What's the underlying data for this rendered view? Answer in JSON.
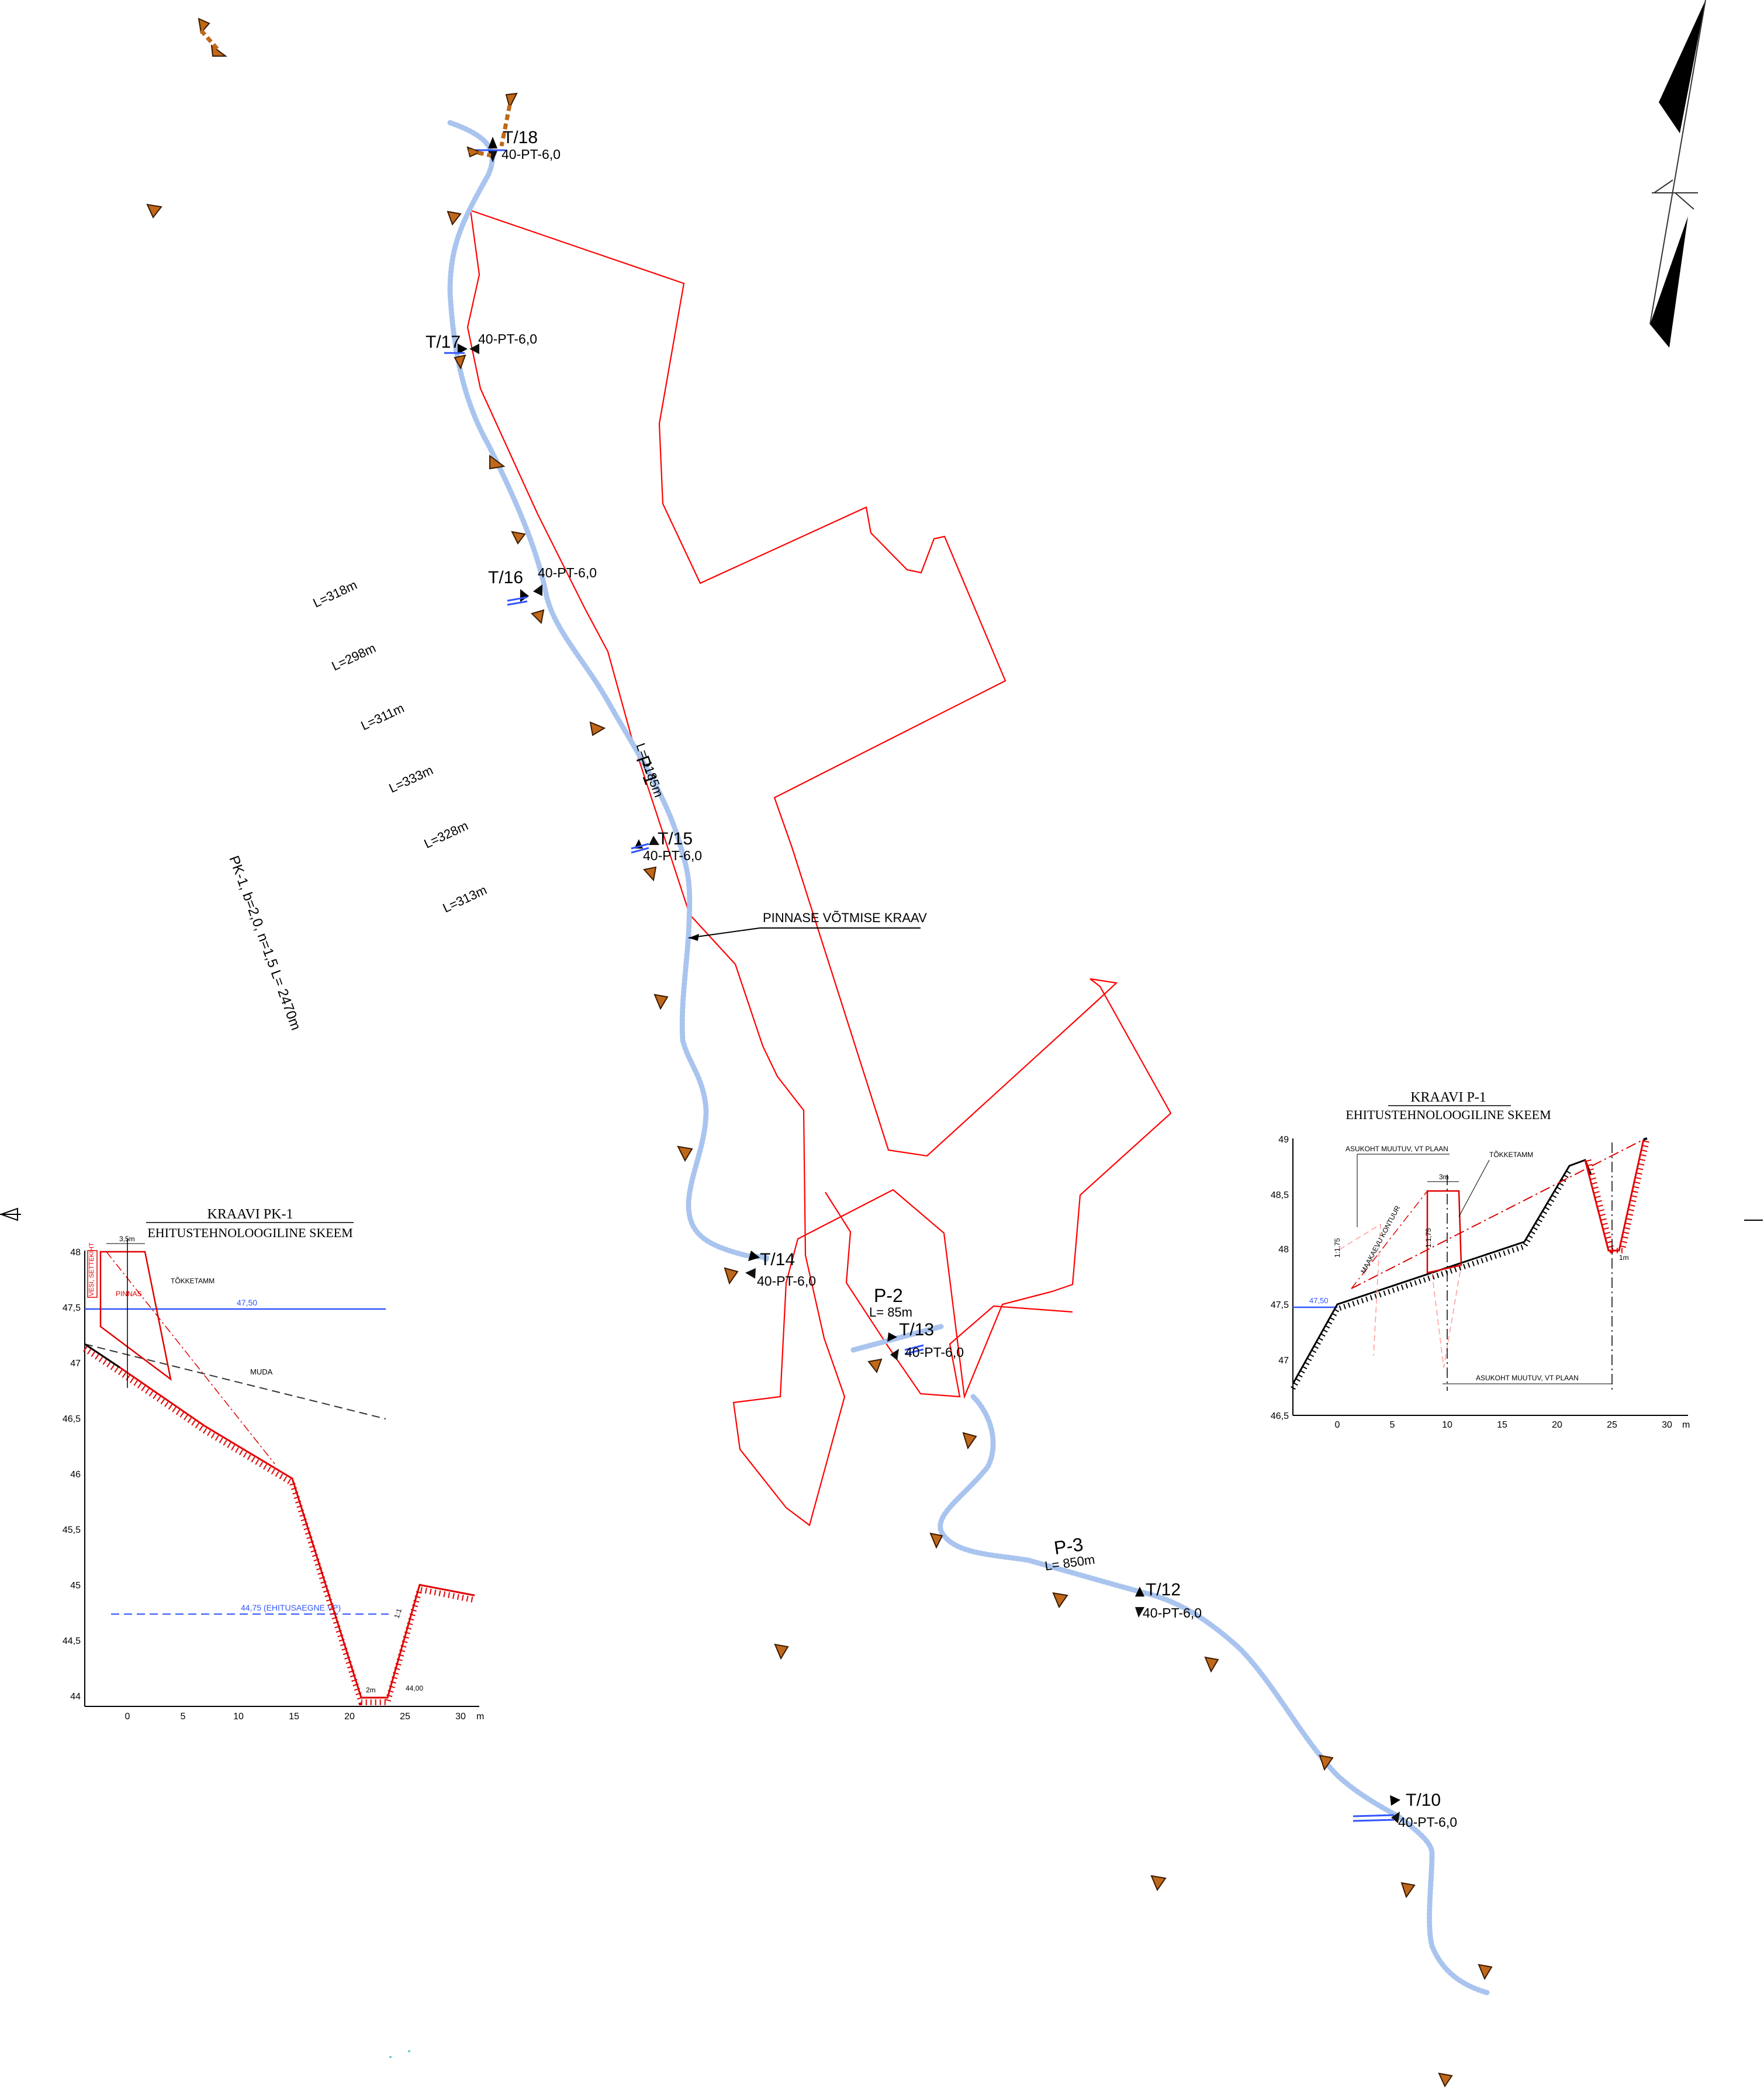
{
  "stations": [
    {
      "id": "T/18",
      "code": "40-PT-6,0"
    },
    {
      "id": "T/17",
      "code": "40-PT-6,0"
    },
    {
      "id": "T/16",
      "code": "40-PT-6,0"
    },
    {
      "id": "T/15",
      "code": "40-PT-6,0"
    },
    {
      "id": "T/14",
      "code": "40-PT-6,0"
    },
    {
      "id": "T/13",
      "code": "40-PT-6,0"
    },
    {
      "id": "T/12",
      "code": "40-PT-6,0"
    },
    {
      "id": "T/10",
      "code": "40-PT-6,0"
    }
  ],
  "ditches": {
    "p1": {
      "name": "P-1",
      "length": "L= 1185m"
    },
    "p2": {
      "name": "P-2",
      "length": "L= 85m"
    },
    "p3": {
      "name": "P-3",
      "length": "L= 850m"
    }
  },
  "callout": "PINNASE VÕTMISE KRAAV",
  "lengths": [
    "L=318m",
    "L=298m",
    "L=311m",
    "L=333m",
    "L=328m",
    "L=313m"
  ],
  "pk1_spec": "PK-1, b=2,0, n=1,5 L= 2470m",
  "section_pk1": {
    "title": "KRAAVI PK-1",
    "subtitle": "EHITUSTEHNOLOOGILINE SKEEM",
    "y_ticks": [
      "48",
      "47,5",
      "47",
      "46,5",
      "46",
      "45,5",
      "45",
      "44,5",
      "44"
    ],
    "x_ticks": [
      "0",
      "5",
      "10",
      "15",
      "20",
      "25",
      "30"
    ],
    "x_unit": "m",
    "labels": {
      "tokketamm": "TÕKKETAMM",
      "pinnas": "PINNAS",
      "muda": "MUDA",
      "water": "47,50",
      "ehitus": "44,75 (EHITUSAEGNE VP)",
      "bottom": "44,00",
      "width_top": "3,5m",
      "width_bottom": "2m",
      "slope": "1:1",
      "side_label": "VESI, SETTEKIHT"
    }
  },
  "section_p1": {
    "title": "KRAAVI P-1",
    "subtitle": "EHITUSTEHNOLOOGILINE SKEEM",
    "y_ticks": [
      "49",
      "48,5",
      "48",
      "47,5",
      "47",
      "46,5"
    ],
    "x_ticks": [
      "0",
      "5",
      "10",
      "15",
      "20",
      "25",
      "30"
    ],
    "x_unit": "m",
    "labels": {
      "asukoht_top": "ASUKOHT MUUTUV, VT PLAAN",
      "asukoht_bottom": "ASUKOHT MUUTUV, VT PLAAN",
      "tokketamm": "TÕKKETAMM",
      "maakaevu": "MAAKAEVU KONTUUR",
      "width_3m": "3m",
      "width_1m": "1m",
      "water": "47,50",
      "slope1": "1:1,75",
      "slope2": "1:1,75"
    }
  },
  "colors": {
    "boundary": "#ff0000",
    "ditch": "#a9c4ee",
    "marker_fill": "#c0681a",
    "marker_stroke": "#3a1a00",
    "section_red": "#e00000",
    "water_blue": "#3355ff"
  },
  "icons": [
    "north-arrow-icon",
    "survey-point-icon",
    "culvert-icon",
    "triangle-marker-icon"
  ]
}
